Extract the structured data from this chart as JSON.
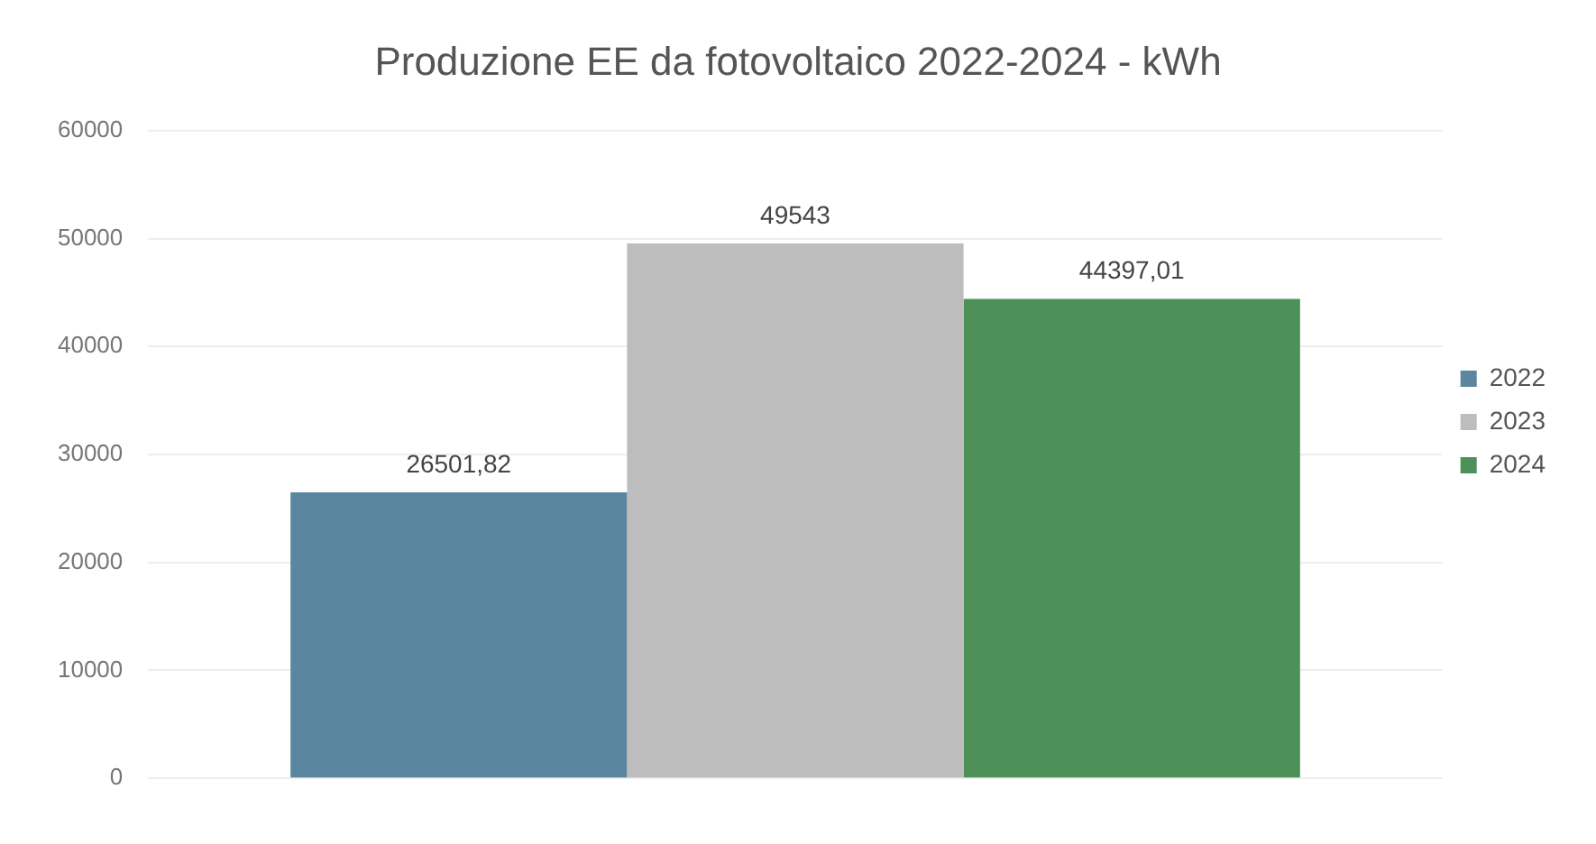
{
  "chart_data": {
    "type": "bar",
    "title": "Produzione EE da fotovoltaico 2022-2024 - kWh",
    "categories": [
      null
    ],
    "series": [
      {
        "name": "2022",
        "color": "#5a86a0",
        "values": [
          26501.82
        ],
        "value_labels": [
          "26501,82"
        ]
      },
      {
        "name": "2023",
        "color": "#bdbdbd",
        "values": [
          49543
        ],
        "value_labels": [
          "49543"
        ]
      },
      {
        "name": "2024",
        "color": "#4e9158",
        "values": [
          44397.01
        ],
        "value_labels": [
          "44397,01"
        ]
      }
    ],
    "ylim": [
      0,
      60000
    ],
    "yticks": [
      0,
      10000,
      20000,
      30000,
      40000,
      50000,
      60000
    ],
    "grid": "y",
    "legend": "right"
  }
}
